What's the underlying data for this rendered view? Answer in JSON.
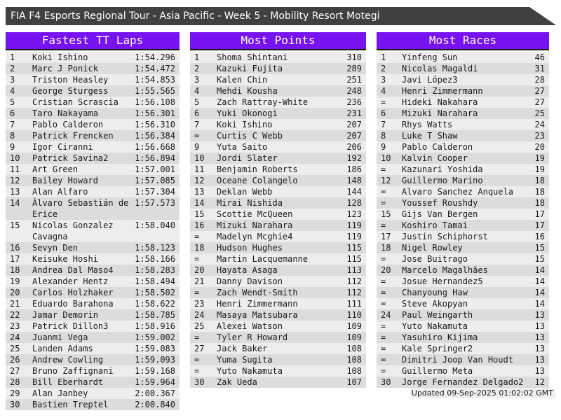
{
  "title": "FIA F4 Esports Regional Tour - Asia Pacific - Week 5 - Mobility Resort Motegi",
  "updated": "Updated 09-Sep-2025 01:02:02 GMT",
  "colors": {
    "accent": "#7712F0",
    "titlebar": "#404040",
    "row_odd": "#EDEDED",
    "row_even": "#DCDCDC",
    "header_text": "#FFFFFF"
  },
  "tables": [
    {
      "title": "Fastest TT Laps",
      "rows": [
        [
          "1",
          "Koki Ishino",
          "1:54.296"
        ],
        [
          "2",
          "Marc J Ponick",
          "1:54.472"
        ],
        [
          "3",
          "Triston Heasley",
          "1:54.853"
        ],
        [
          "4",
          "George Sturgess",
          "1:55.565"
        ],
        [
          "5",
          "Cristian Scrascia",
          "1:56.108"
        ],
        [
          "6",
          "Taro Nakayama",
          "1:56.301"
        ],
        [
          "7",
          "Pablo Calderon",
          "1:56.310"
        ],
        [
          "8",
          "Patrick Frencken",
          "1:56.384"
        ],
        [
          "9",
          "Igor Ciranni",
          "1:56.668"
        ],
        [
          "10",
          "Patrick Savina2",
          "1:56.894"
        ],
        [
          "11",
          "Art Green",
          "1:57.001"
        ],
        [
          "12",
          "Bailey Howard",
          "1:57.085"
        ],
        [
          "13",
          "Alan Alfaro",
          "1:57.304"
        ],
        [
          "14",
          "Álvaro Sebastián de Erice",
          "1:57.573"
        ],
        [
          "15",
          "Nicolas Gonzalez Cavagna",
          "1:58.040"
        ],
        [
          "16",
          "Sevyn Den",
          "1:58.123"
        ],
        [
          "17",
          "Keisuke Hoshi",
          "1:58.166"
        ],
        [
          "18",
          "Andrea Dal Maso4",
          "1:58.283"
        ],
        [
          "19",
          "Alexander Hentz",
          "1:58.494"
        ],
        [
          "20",
          "Carlos Holzhaker",
          "1:58.502"
        ],
        [
          "21",
          "Eduardo Barahona",
          "1:58.622"
        ],
        [
          "22",
          "Jamar Demorin",
          "1:58.785"
        ],
        [
          "23",
          "Patrick Dillon3",
          "1:58.916"
        ],
        [
          "24",
          "Juanmi Vega",
          "1:59.002"
        ],
        [
          "25",
          "Landen Adams",
          "1:59.083"
        ],
        [
          "26",
          "Andrew Cowling",
          "1:59.093"
        ],
        [
          "27",
          "Bruno Zaffignani",
          "1:59.168"
        ],
        [
          "28",
          "Bill Eberhardt",
          "1:59.964"
        ],
        [
          "29",
          "Alan Janbey",
          "2:00.367"
        ],
        [
          "30",
          "Bastien Treptel",
          "2:00.840"
        ]
      ]
    },
    {
      "title": "Most Points",
      "rows": [
        [
          "1",
          "Shoma Shintani",
          "310"
        ],
        [
          "2",
          "Kazuki Fujita",
          "289"
        ],
        [
          "3",
          "Kalen Chin",
          "251"
        ],
        [
          "4",
          "Mehdi Kousha",
          "248"
        ],
        [
          "5",
          "Zach Rattray-White",
          "236"
        ],
        [
          "6",
          "Yuki Okonogi",
          "231"
        ],
        [
          "7",
          "Koki Ishino",
          "207"
        ],
        [
          "=",
          "Curtis C Webb",
          "207"
        ],
        [
          "9",
          "Yuta Saito",
          "206"
        ],
        [
          "10",
          "Jordi Slater",
          "192"
        ],
        [
          "11",
          "Benjamin Roberts",
          "186"
        ],
        [
          "12",
          "Oceane Colangelo",
          "148"
        ],
        [
          "13",
          "Deklan Webb",
          "144"
        ],
        [
          "14",
          "Mirai Nishida",
          "128"
        ],
        [
          "15",
          "Scottie McQueen",
          "123"
        ],
        [
          "16",
          "Mizuki Narahara",
          "119"
        ],
        [
          "=",
          "Madelyn Mcghie4",
          "119"
        ],
        [
          "18",
          "Hudson Hughes",
          "115"
        ],
        [
          "=",
          "Martin Lacquemanne",
          "115"
        ],
        [
          "20",
          "Hayata Asaga",
          "113"
        ],
        [
          "21",
          "Danny Davison",
          "112"
        ],
        [
          "=",
          "Zach Wendt-Smith",
          "112"
        ],
        [
          "23",
          "Henri Zimmermann",
          "111"
        ],
        [
          "24",
          "Masaya Matsubara",
          "110"
        ],
        [
          "25",
          "Alexei Watson",
          "109"
        ],
        [
          "=",
          "Tyler R Howard",
          "109"
        ],
        [
          "27",
          "Jack Baker",
          "108"
        ],
        [
          "=",
          "Yuma Sugita",
          "108"
        ],
        [
          "=",
          "Yuto Nakamuta",
          "108"
        ],
        [
          "30",
          "Zak Ueda",
          "107"
        ]
      ]
    },
    {
      "title": "Most Races",
      "rows": [
        [
          "1",
          "Yinfeng Sun",
          "46"
        ],
        [
          "2",
          "Nicolas Magaldi",
          "31"
        ],
        [
          "3",
          "Javi López3",
          "28"
        ],
        [
          "4",
          "Henri Zimmermann",
          "27"
        ],
        [
          "=",
          "Hideki Nakahara",
          "27"
        ],
        [
          "6",
          "Mizuki Narahara",
          "25"
        ],
        [
          "7",
          "Rhys Watts",
          "24"
        ],
        [
          "8",
          "Luke T Shaw",
          "23"
        ],
        [
          "9",
          "Pablo Calderon",
          "20"
        ],
        [
          "10",
          "Kalvin Cooper",
          "19"
        ],
        [
          "=",
          "Kazunari Yoshida",
          "19"
        ],
        [
          "12",
          "Guillermo Marino",
          "18"
        ],
        [
          "=",
          "Alvaro Sanchez Anquela",
          "18"
        ],
        [
          "=",
          "Youssef Roushdy",
          "18"
        ],
        [
          "15",
          "Gijs Van Bergen",
          "17"
        ],
        [
          "=",
          "Koshiro Tamai",
          "17"
        ],
        [
          "17",
          "Justin Schiphorst",
          "16"
        ],
        [
          "18",
          "Nigel Rowley",
          "15"
        ],
        [
          "=",
          "Jose Buitrago",
          "15"
        ],
        [
          "20",
          "Marcelo Magalhães",
          "14"
        ],
        [
          "=",
          "Josue Hernandez5",
          "14"
        ],
        [
          "=",
          "Chanyoung Haw",
          "14"
        ],
        [
          "=",
          "Steve Akopyan",
          "14"
        ],
        [
          "24",
          "Paul Weingarth",
          "13"
        ],
        [
          "=",
          "Yuto Nakamuta",
          "13"
        ],
        [
          "=",
          "Yasuhiro Kijima",
          "13"
        ],
        [
          "=",
          "Kale Springer2",
          "13"
        ],
        [
          "=",
          "Dimitri Joop Van Houdt",
          "13"
        ],
        [
          "=",
          "Guillermo Meta",
          "13"
        ],
        [
          "30",
          "Jorge Fernandez Delgado2",
          "12"
        ]
      ]
    }
  ]
}
